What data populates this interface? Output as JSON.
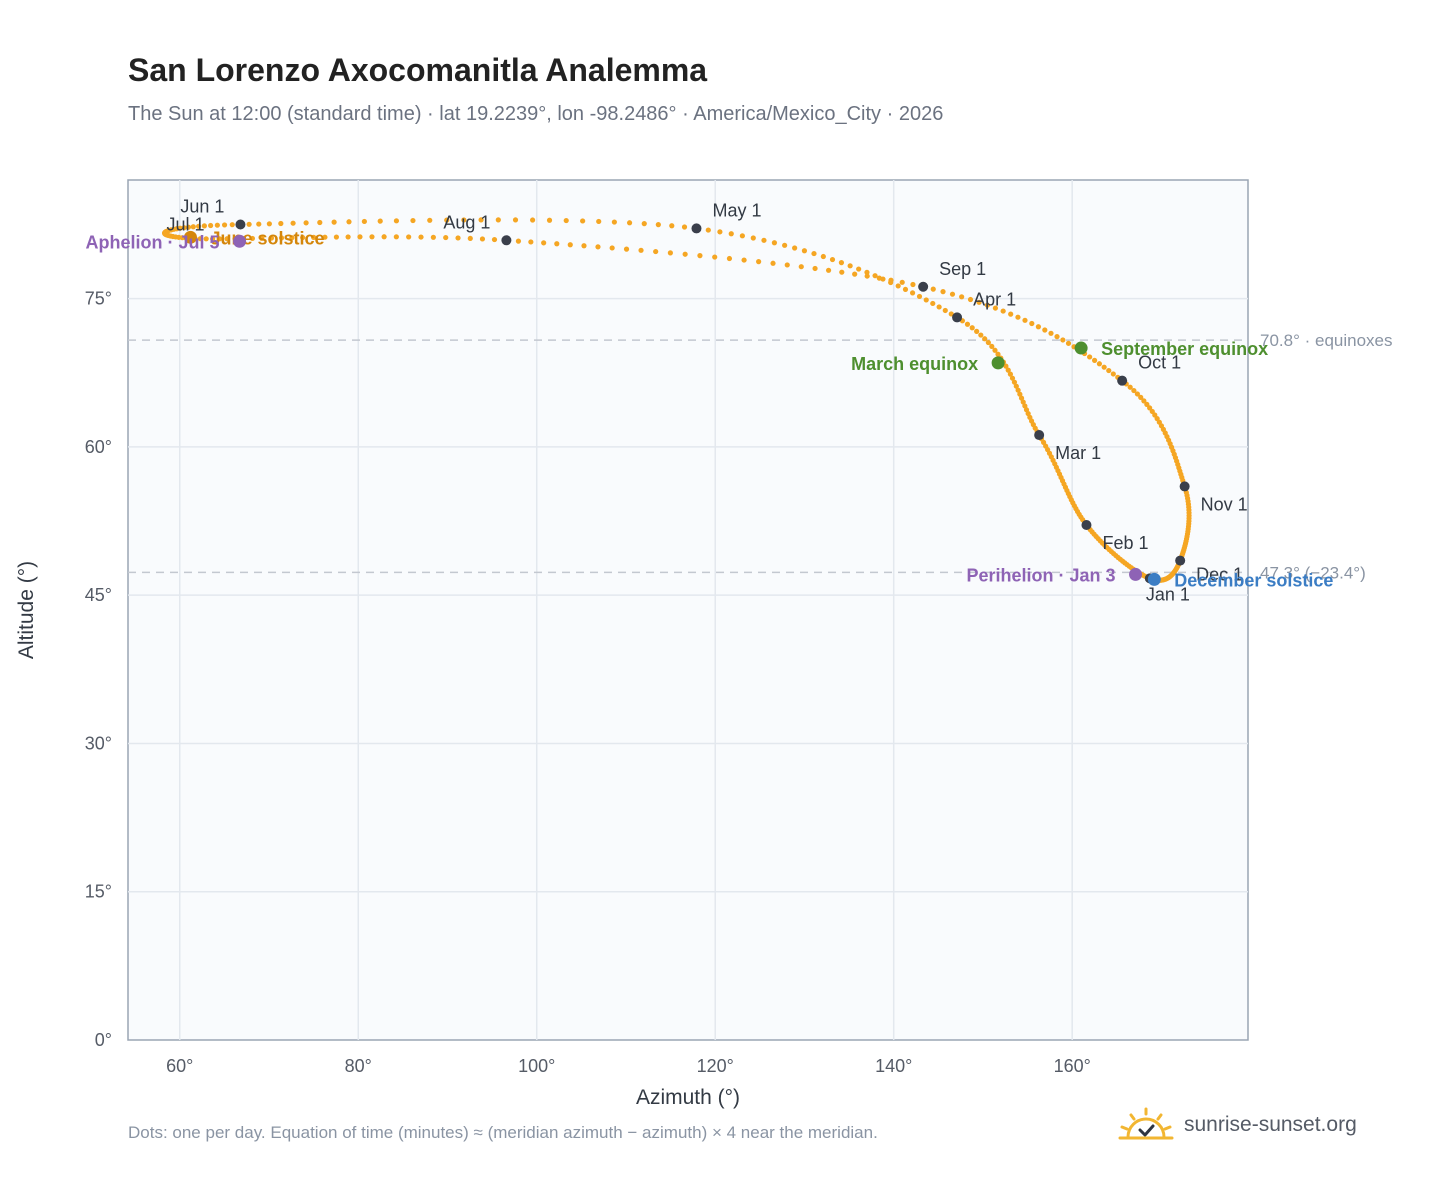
{
  "title": "San Lorenzo Axocomanitla Analemma",
  "subtitle": "The Sun at 12:00 (standard time) · lat 19.2239°, lon -98.2486° · America/Mexico_City · 2026",
  "footnote": "Dots: one per day. Equation of time (minutes) ≈ (meridian azimuth − azimuth) × 4 near the meridian.",
  "brand": {
    "label": "sunrise-sunset.org",
    "logo_icon": "sun-check-icon"
  },
  "colors": {
    "path": "#f5a623",
    "month_marker": "#3a3f4b",
    "equinox": "#4e8f2f",
    "solstice_june": "#d4860b",
    "solstice_december": "#3b7dc4",
    "apsis": "#8e63b5",
    "reference_line": "#c3c8d0"
  },
  "chart_data": {
    "type": "scatter",
    "title": "San Lorenzo Axocomanitla Analemma",
    "xlabel": "Azimuth (°)",
    "ylabel": "Altitude (°)",
    "xlim": [
      54.2,
      179.7
    ],
    "ylim": [
      0,
      87
    ],
    "grid": true,
    "x_ticks": [
      {
        "value": 60,
        "label": "60°"
      },
      {
        "value": 80,
        "label": "80°"
      },
      {
        "value": 100,
        "label": "100°"
      },
      {
        "value": 120,
        "label": "120°"
      },
      {
        "value": 140,
        "label": "140°"
      },
      {
        "value": 160,
        "label": "160°"
      }
    ],
    "y_ticks": [
      {
        "value": 0,
        "label": "0°"
      },
      {
        "value": 15,
        "label": "15°"
      },
      {
        "value": 30,
        "label": "30°"
      },
      {
        "value": 45,
        "label": "45°"
      },
      {
        "value": 60,
        "label": "60°"
      },
      {
        "value": 75,
        "label": "75°"
      }
    ],
    "reference_lines": [
      {
        "y": 70.8,
        "label": "70.8° · equinoxes"
      },
      {
        "y": 47.3,
        "label": "47.3° (−23.4°)"
      }
    ],
    "months": [
      {
        "label": "Jan 1",
        "x": 168.7,
        "y": 46.7
      },
      {
        "label": "Feb 1",
        "x": 161.6,
        "y": 52.1
      },
      {
        "label": "Mar 1",
        "x": 156.3,
        "y": 61.2
      },
      {
        "label": "Apr 1",
        "x": 147.1,
        "y": 73.1
      },
      {
        "label": "May 1",
        "x": 117.9,
        "y": 82.1
      },
      {
        "label": "Jun 1",
        "x": 66.8,
        "y": 82.5
      },
      {
        "label": "Jul 1",
        "x": 61.2,
        "y": 81.1
      },
      {
        "label": "Aug 1",
        "x": 96.6,
        "y": 80.9
      },
      {
        "label": "Sep 1",
        "x": 143.3,
        "y": 76.2
      },
      {
        "label": "Oct 1",
        "x": 165.6,
        "y": 66.7
      },
      {
        "label": "Nov 1",
        "x": 172.6,
        "y": 56.0
      },
      {
        "label": "Dec 1",
        "x": 172.1,
        "y": 48.5
      }
    ],
    "events": [
      {
        "label": "March equinox",
        "x": 151.7,
        "y": 68.5,
        "color": "#4e8f2f",
        "label_side": "left"
      },
      {
        "label": "September equinox",
        "x": 161.0,
        "y": 70.0,
        "color": "#4e8f2f",
        "label_side": "right"
      },
      {
        "label": "June solstice",
        "x": 61.2,
        "y": 81.2,
        "color": "#d4860b",
        "label_side": "right"
      },
      {
        "label": "December solstice",
        "x": 169.2,
        "y": 46.6,
        "color": "#3b7dc4",
        "label_side": "right"
      },
      {
        "label": "Aphelion · Jul 5",
        "x": 66.7,
        "y": 80.8,
        "color": "#8e63b5",
        "label_side": "left"
      },
      {
        "label": "Perihelion · Jan 3",
        "x": 167.1,
        "y": 47.1,
        "color": "#8e63b5",
        "label_side": "left"
      }
    ]
  }
}
